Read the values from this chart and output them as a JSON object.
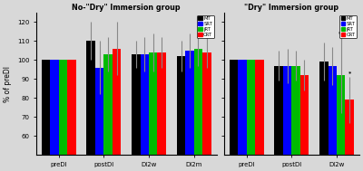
{
  "left_title": "No-\"Dry\" Immersion group",
  "right_title": "\"Dry\" Immersion group",
  "ylabel": "% of preDI",
  "ylim": [
    50,
    125
  ],
  "yticks": [
    60,
    70,
    80,
    90,
    100,
    110,
    120
  ],
  "legend_labels": [
    "MT",
    "SRT",
    "jRT",
    "CRT"
  ],
  "bar_colors": [
    "#000000",
    "#0000ff",
    "#00bb00",
    "#ff0000"
  ],
  "bar_width": 0.19,
  "left_categories": [
    "preDI",
    "postDI",
    "DI2w",
    "DI2m"
  ],
  "right_categories": [
    "preDI",
    "postDI",
    "DI2w"
  ],
  "left_data": {
    "MT": [
      100,
      110,
      103,
      102
    ],
    "SRT": [
      100,
      96,
      103,
      105
    ],
    "jRT": [
      100,
      103,
      104,
      106
    ],
    "CRT": [
      100,
      106,
      104,
      104
    ]
  },
  "left_errors": {
    "MT": [
      0,
      10,
      7,
      8
    ],
    "SRT": [
      0,
      14,
      9,
      9
    ],
    "jRT": [
      0,
      9,
      10,
      9
    ],
    "CRT": [
      0,
      14,
      8,
      8
    ]
  },
  "right_data": {
    "MT": [
      100,
      97,
      99
    ],
    "SRT": [
      100,
      97,
      97
    ],
    "jRT": [
      100,
      97,
      92
    ],
    "CRT": [
      100,
      92,
      79
    ]
  },
  "right_errors": {
    "MT": [
      0,
      8,
      10
    ],
    "SRT": [
      0,
      9,
      10
    ],
    "jRT": [
      0,
      8,
      20
    ],
    "CRT": [
      0,
      8,
      12
    ]
  },
  "right_annotations": {
    "jRT_DI2w": "**",
    "CRT_DI2w": "*"
  },
  "background_color": "#d8d8d8"
}
